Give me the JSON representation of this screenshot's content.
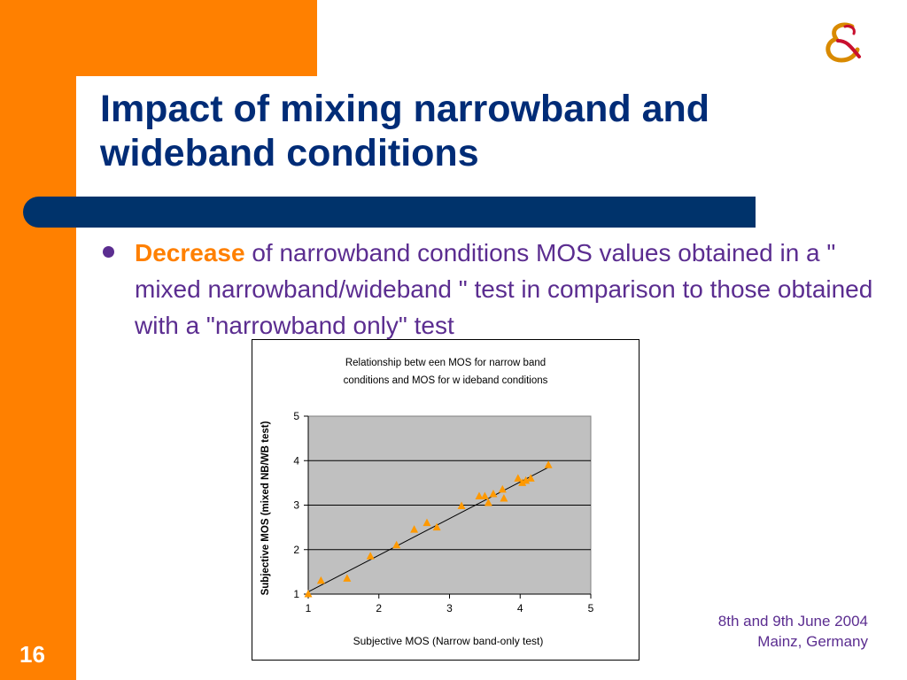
{
  "slide": {
    "title": "Impact of mixing narrowband and\nwideband conditions",
    "bullet_highlight": "Decrease",
    "bullet_rest": " of narrowband conditions MOS values obtained in a \" mixed narrowband/wideband \" test in comparison to those obtained with a \"narrowband only\" test",
    "footer_line1": "8th and 9th June 2004",
    "footer_line2": "Mainz, Germany",
    "page_number": "16"
  },
  "colors": {
    "orange": "#FF8000",
    "navy": "#00336B",
    "title_blue": "#002C77",
    "text_purple": "#5B2D90",
    "plot_gray": "#C0C0C0",
    "marker": "#FF9900"
  },
  "chart_data": {
    "type": "scatter",
    "title_line1": "Relationship betw een MOS for narrow band",
    "title_line2": "conditions and MOS for w ideband conditions",
    "xlabel": "Subjective MOS (Narrow band-only test)",
    "ylabel": "Subjective MOS (mixed NB/WB test)",
    "xlim": [
      1,
      5
    ],
    "ylim": [
      1,
      5
    ],
    "xticks": [
      "1",
      "2",
      "3",
      "4",
      "5"
    ],
    "yticks": [
      "1",
      "2",
      "3",
      "4",
      "5"
    ],
    "grid": "horizontal",
    "legend": "none",
    "x": [
      1.0,
      1.18,
      1.55,
      1.88,
      2.25,
      2.5,
      2.68,
      2.82,
      3.17,
      3.42,
      3.5,
      3.55,
      3.62,
      3.75,
      3.77,
      3.97,
      4.03,
      4.08,
      4.15,
      4.4
    ],
    "y": [
      1.0,
      1.3,
      1.35,
      1.85,
      2.1,
      2.45,
      2.6,
      2.5,
      2.98,
      3.2,
      3.2,
      3.05,
      3.25,
      3.35,
      3.15,
      3.6,
      3.5,
      3.55,
      3.6,
      3.9
    ],
    "trendline": {
      "x": [
        1.0,
        4.4
      ],
      "y": [
        1.05,
        3.85
      ]
    }
  }
}
